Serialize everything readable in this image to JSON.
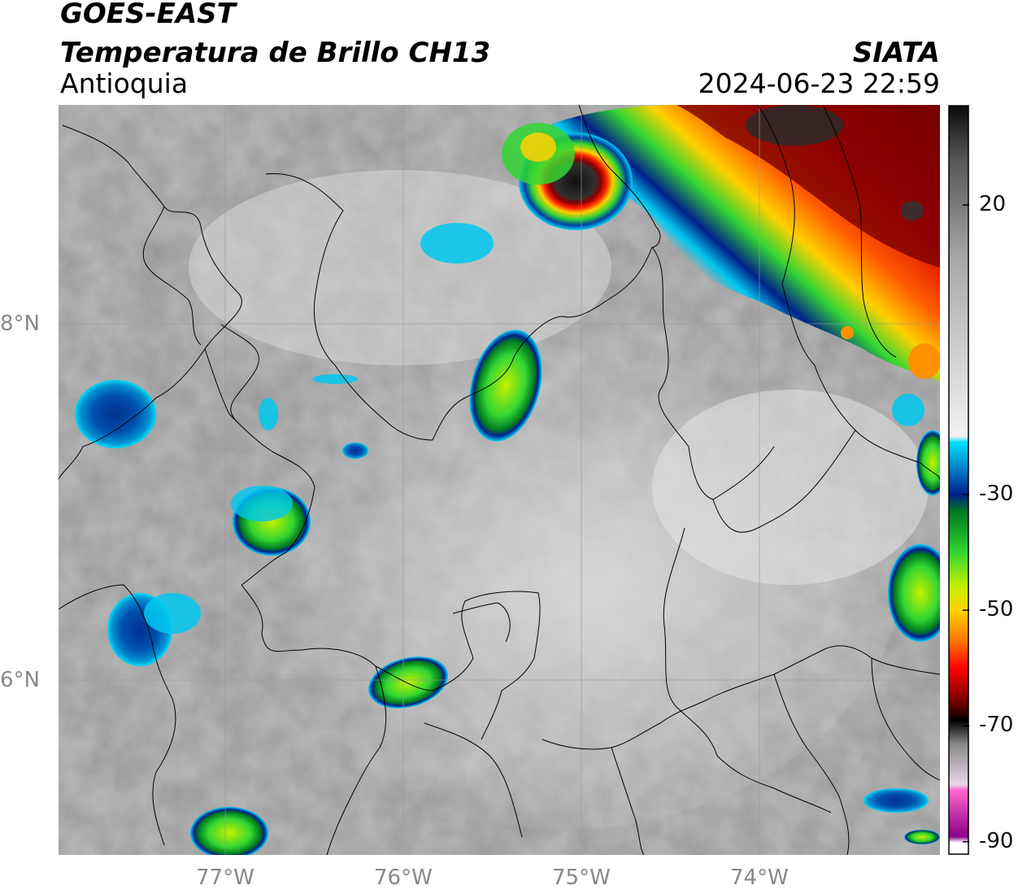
{
  "header": {
    "satellite": "GOES-EAST",
    "product": "Temperatura de Brillo CH13",
    "region": "Antioquia",
    "org": "SIATA",
    "datetime": "2024-06-23 22:59"
  },
  "map": {
    "lon_labels": [
      "77°W",
      "76°W",
      "75°W",
      "74°W"
    ],
    "lat_labels": [
      "8°N",
      "6°N"
    ]
  },
  "colorbar": {
    "tick_labels": [
      "20",
      "-30",
      "-50",
      "-70",
      "-90"
    ],
    "tick_values": [
      20,
      -30,
      -50,
      -70,
      -90
    ],
    "range": [
      -92,
      37
    ],
    "stops": [
      {
        "value": 37,
        "color": "#0a0a0a"
      },
      {
        "value": 28,
        "color": "#555555"
      },
      {
        "value": 10,
        "color": "#aaaaaa"
      },
      {
        "value": -20,
        "color": "#f2f2f2"
      },
      {
        "value": -21,
        "color": "#00e0ff"
      },
      {
        "value": -30,
        "color": "#00208a"
      },
      {
        "value": -33,
        "color": "#007a20"
      },
      {
        "value": -40,
        "color": "#33d633"
      },
      {
        "value": -46,
        "color": "#c6f000"
      },
      {
        "value": -50,
        "color": "#ffd000"
      },
      {
        "value": -55,
        "color": "#ff7a00"
      },
      {
        "value": -60,
        "color": "#ff0000"
      },
      {
        "value": -66,
        "color": "#6b0000"
      },
      {
        "value": -69,
        "color": "#000000"
      },
      {
        "value": -73,
        "color": "#888888"
      },
      {
        "value": -80,
        "color": "#e8d8e8"
      },
      {
        "value": -81,
        "color": "#ff66cc"
      },
      {
        "value": -89,
        "color": "#8a0088"
      },
      {
        "value": -90,
        "color": "#ffffff"
      }
    ]
  }
}
